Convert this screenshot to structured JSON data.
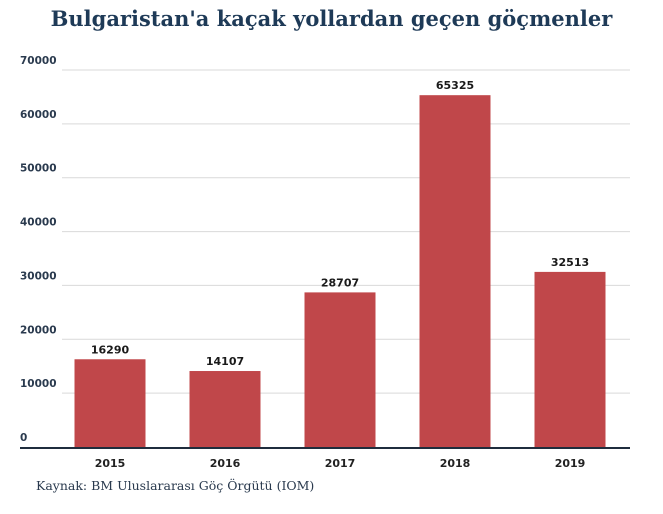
{
  "title": "Bulgaristan'a kaçak yollardan geçen göçmenler",
  "source": "Kaynak: BM Uluslararası Göç Örgütü (IOM)",
  "colors": {
    "bar": "#c0474a",
    "grid": "#d9d9d9",
    "title": "#1e3a57",
    "axis": "#1f2d3d"
  },
  "chart_data": {
    "type": "bar",
    "title": "Bulgaristan'a kaçak yollardan geçen göçmenler",
    "xlabel": "",
    "ylabel": "",
    "categories": [
      "2015",
      "2016",
      "2017",
      "2018",
      "2019"
    ],
    "values": [
      16290,
      14107,
      28707,
      65325,
      32513
    ],
    "data_labels": [
      "16290",
      "14107",
      "28707",
      "65325",
      "32513"
    ],
    "y_ticks": [
      "0",
      "10000",
      "20000",
      "30000",
      "40000",
      "50000",
      "60000",
      "70000"
    ],
    "ylim": [
      0,
      70000
    ],
    "grid": true,
    "legend": "none"
  }
}
